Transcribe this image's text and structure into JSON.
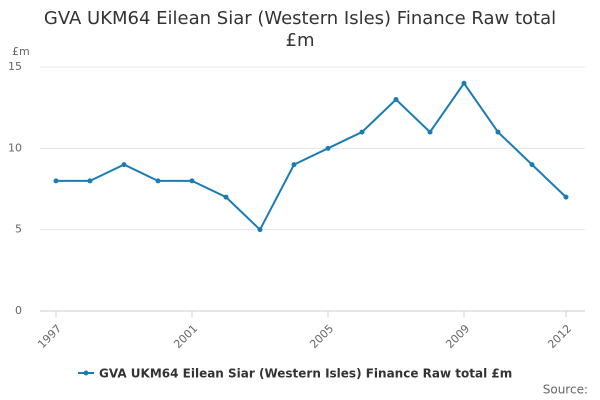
{
  "chart_data": {
    "type": "line",
    "title": "GVA UKM64 Eilean Siar (Western Isles) Finance Raw total £m",
    "y_label": "£m",
    "x": [
      1997,
      1998,
      1999,
      2000,
      2001,
      2002,
      2003,
      2004,
      2005,
      2006,
      2007,
      2008,
      2009,
      2010,
      2011,
      2012
    ],
    "series": [
      {
        "name": "GVA UKM64 Eilean Siar (Western Isles) Finance Raw total £m",
        "color": "#1a7cb4",
        "values": [
          8,
          8,
          9,
          8,
          8,
          7,
          5,
          9,
          10,
          11,
          13,
          11,
          14,
          11,
          9,
          7
        ]
      }
    ],
    "xlim": [
      1997,
      2012
    ],
    "xticks": [
      1997,
      2001,
      2005,
      2009,
      2012
    ],
    "ylim": [
      0,
      15
    ],
    "yticks": [
      0,
      5,
      10,
      15
    ],
    "grid": true,
    "source": "Source:"
  }
}
